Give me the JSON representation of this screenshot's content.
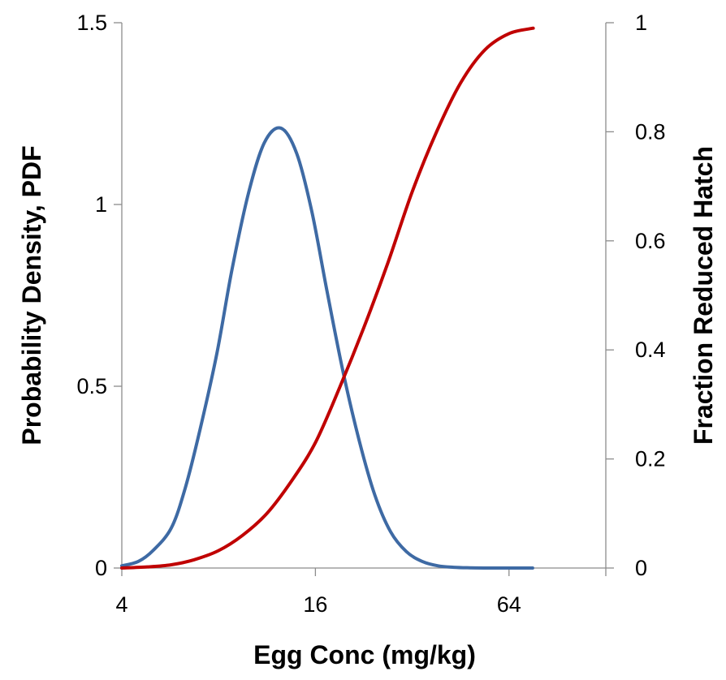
{
  "chart_data": {
    "type": "line",
    "xlabel": "Egg Conc (mg/kg)",
    "ylabel_left": "Probability Density, PDF",
    "ylabel_right": "Fraction Reduced Hatch",
    "x_scale": "log2",
    "xlim": [
      4,
      128
    ],
    "x_ticks": [
      4,
      16,
      64
    ],
    "x_tick_labels": [
      "4",
      "16",
      "64"
    ],
    "ylim_left": [
      0,
      1.5
    ],
    "y_left_ticks": [
      0,
      0.5,
      1,
      1.5
    ],
    "y_left_tick_labels": [
      "0",
      "0.5",
      "1",
      "1.5"
    ],
    "ylim_right": [
      0,
      1
    ],
    "y_right_ticks": [
      0,
      0.2,
      0.4,
      0.6,
      0.8,
      1
    ],
    "y_right_tick_labels": [
      "0",
      "0.2",
      "0.4",
      "0.6",
      "0.8",
      "1"
    ],
    "grid": false,
    "legend": "none",
    "series": [
      {
        "axis": "left",
        "color": "#3e6aa4",
        "x": [
          4.0,
          4.5,
          5.0,
          5.7,
          6.3,
          7.0,
          7.9,
          8.8,
          9.9,
          11.1,
          12.5,
          14.0,
          15.6,
          17.4,
          19.5,
          21.9,
          24.5,
          27.4,
          30.7,
          34.4,
          38.5,
          43.1,
          48.3,
          54.0,
          60.5,
          67.7,
          75.8
        ],
        "y": [
          0.006,
          0.018,
          0.048,
          0.11,
          0.22,
          0.38,
          0.59,
          0.82,
          1.03,
          1.17,
          1.21,
          1.14,
          0.98,
          0.76,
          0.54,
          0.35,
          0.2,
          0.1,
          0.045,
          0.018,
          0.006,
          0.002,
          0.0006,
          0.0001,
          0.0,
          0.0,
          0.0
        ]
      },
      {
        "axis": "right",
        "color": "#c00000",
        "x": [
          4.0,
          4.8,
          5.7,
          6.7,
          8.0,
          9.5,
          11.3,
          13.5,
          16.0,
          19.0,
          22.6,
          26.9,
          32.0,
          38.1,
          45.3,
          53.8,
          64.0,
          76.1
        ],
        "y": [
          0.0,
          0.002,
          0.006,
          0.015,
          0.032,
          0.06,
          0.1,
          0.16,
          0.23,
          0.33,
          0.44,
          0.56,
          0.69,
          0.8,
          0.89,
          0.95,
          0.98,
          0.99
        ]
      }
    ]
  }
}
